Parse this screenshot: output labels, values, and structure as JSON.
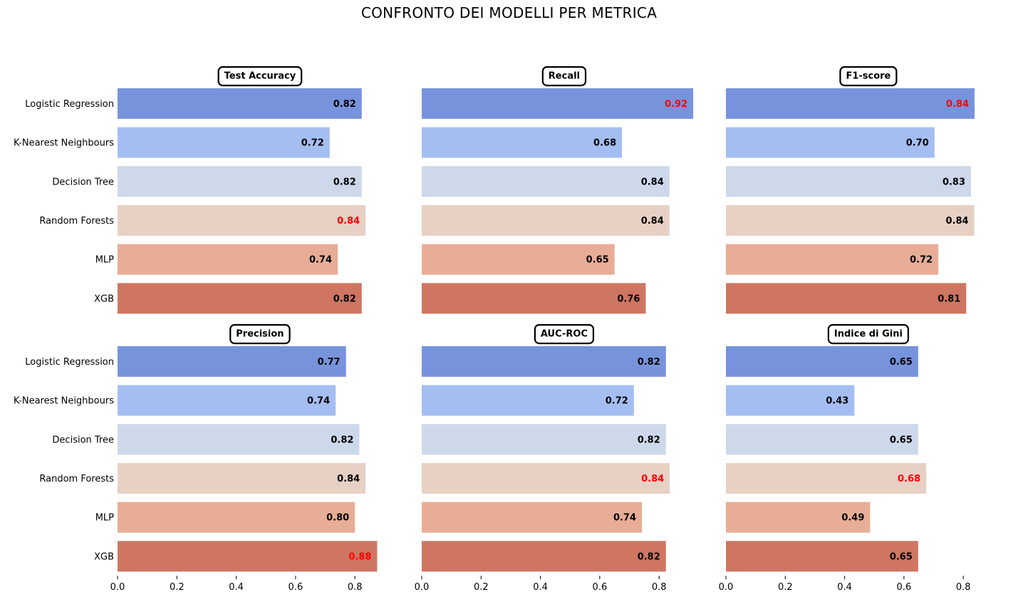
{
  "chart_data": {
    "type": "bar",
    "orientation": "horizontal",
    "title": "CONFRONTO DEI MODELLI PER METRICA",
    "categories": [
      "Logistic Regression",
      "K-Nearest Neighbours",
      "Decision Tree",
      "Random Forests",
      "MLP",
      "XGB"
    ],
    "bar_colors": [
      "#7793dc",
      "#a5bef2",
      "#cdd8ea",
      "#e7d1c5",
      "#e8ad96",
      "#cf7662"
    ],
    "label_color_default": "#000000",
    "label_color_best": "#ff0000",
    "xlim": [
      0,
      0.9
    ],
    "xticks": [
      0.0,
      0.2,
      0.4,
      0.6,
      0.8
    ],
    "xtick_labels": [
      "0.0",
      "0.2",
      "0.4",
      "0.6",
      "0.8"
    ],
    "grid": false,
    "panels": [
      {
        "name": "Test Accuracy",
        "values": [
          0.823,
          0.715,
          0.823,
          0.836,
          0.742,
          0.823
        ],
        "labels": [
          "0.82",
          "0.72",
          "0.82",
          "0.84",
          "0.74",
          "0.82"
        ],
        "best_index": 3
      },
      {
        "name": "Recall",
        "values": [
          0.915,
          0.675,
          0.835,
          0.835,
          0.65,
          0.755
        ],
        "labels": [
          "0.92",
          "0.68",
          "0.84",
          "0.84",
          "0.65",
          "0.76"
        ],
        "best_index": 0
      },
      {
        "name": "F1-score",
        "values": [
          0.838,
          0.703,
          0.826,
          0.837,
          0.716,
          0.81
        ],
        "labels": [
          "0.84",
          "0.70",
          "0.83",
          "0.84",
          "0.72",
          "0.81"
        ],
        "best_index": 0
      },
      {
        "name": "Precision",
        "values": [
          0.77,
          0.735,
          0.815,
          0.836,
          0.8,
          0.875
        ],
        "labels": [
          "0.77",
          "0.74",
          "0.82",
          "0.84",
          "0.80",
          "0.88"
        ],
        "best_index": 5
      },
      {
        "name": "AUC-ROC",
        "values": [
          0.823,
          0.715,
          0.823,
          0.836,
          0.742,
          0.823
        ],
        "labels": [
          "0.82",
          "0.72",
          "0.82",
          "0.84",
          "0.74",
          "0.82"
        ],
        "best_index": 3
      },
      {
        "name": "Indice di Gini",
        "values": [
          0.648,
          0.433,
          0.648,
          0.675,
          0.486,
          0.648
        ],
        "labels": [
          "0.65",
          "0.43",
          "0.65",
          "0.68",
          "0.49",
          "0.65"
        ],
        "best_index": 3
      }
    ]
  }
}
